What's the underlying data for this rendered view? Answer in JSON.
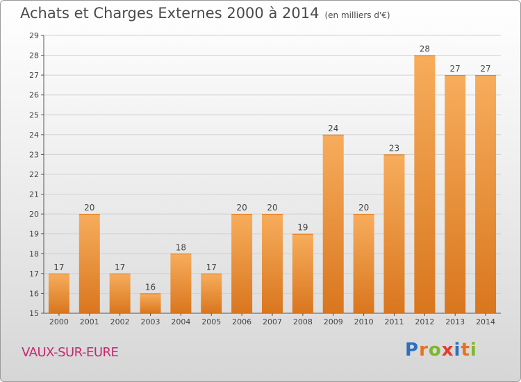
{
  "header": {
    "title": "Achats et Charges Externes 2000 à 2014",
    "unit": "(en milliers d'€)"
  },
  "footer": {
    "commune": "VAUX-SUR-EURE",
    "logo": [
      "P",
      "r",
      "o",
      "x",
      "i",
      "t",
      "i"
    ],
    "logo_colors": [
      "#2b6fc1",
      "#e8731e",
      "#7bb82a",
      "#e33b2d",
      "#2b6fc1",
      "#e8731e",
      "#7bb82a"
    ]
  },
  "colors": {
    "bar": "#f29a3d",
    "bar_light": "#f7ad5c",
    "bar_dark": "#d9761e",
    "grid": "#d0d0d0"
  },
  "chart_data": {
    "type": "bar",
    "title": "Achats et Charges Externes 2000 à 2014",
    "categories": [
      "2000",
      "2001",
      "2002",
      "2003",
      "2004",
      "2005",
      "2006",
      "2007",
      "2008",
      "2009",
      "2010",
      "2011",
      "2012",
      "2013",
      "2014"
    ],
    "values": [
      17,
      20,
      17,
      16,
      18,
      17,
      20,
      20,
      19,
      24,
      20,
      23,
      28,
      27,
      27
    ],
    "data_labels": [
      "17",
      "20",
      "17",
      "16",
      "18",
      "17",
      "20",
      "20",
      "19",
      "24",
      "20",
      "23",
      "28",
      "27",
      "27"
    ],
    "ylim": [
      15,
      29
    ],
    "yticks": [
      15,
      16,
      17,
      18,
      19,
      20,
      21,
      22,
      23,
      24,
      25,
      26,
      27,
      28,
      29
    ],
    "grid": true
  }
}
